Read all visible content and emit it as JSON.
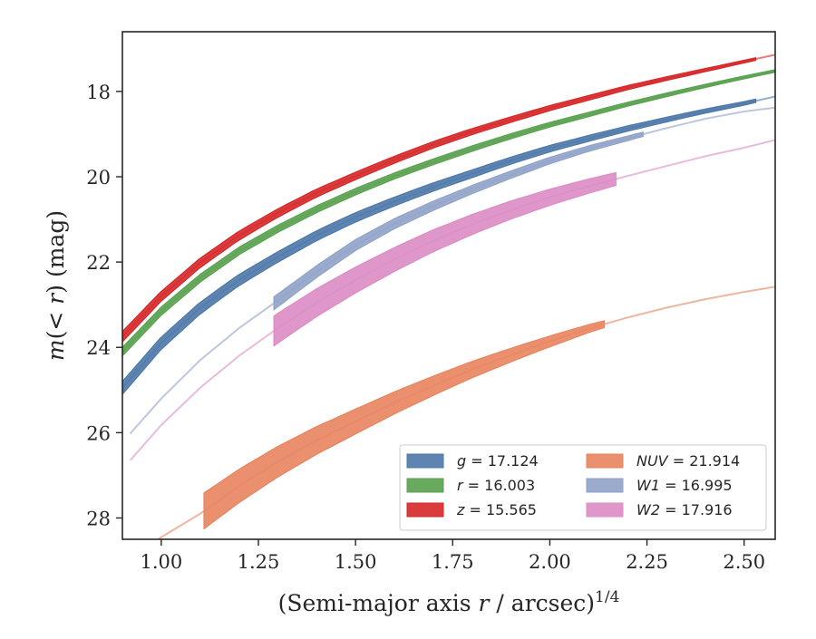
{
  "chart_data": {
    "type": "area",
    "xlabel": "(Semi-major axis r / arcsec)^1/4",
    "ylabel": "m(< r) (mag)",
    "xlim": [
      0.9,
      2.58
    ],
    "ylim": [
      28.5,
      16.6
    ],
    "y_inverted": true,
    "grid": false,
    "legend_position": "lower-right",
    "legend_columns": 2,
    "x_ticks": [
      "1.00",
      "1.25",
      "1.50",
      "1.75",
      "2.00",
      "2.25",
      "2.50"
    ],
    "x_tick_values": [
      1.0,
      1.25,
      1.5,
      1.75,
      2.0,
      2.25,
      2.5
    ],
    "y_ticks": [
      "18",
      "20",
      "22",
      "24",
      "26",
      "28"
    ],
    "y_tick_values": [
      18,
      20,
      22,
      24,
      26,
      28
    ],
    "series": [
      {
        "name": "g = 17.124",
        "legend_var": "g",
        "legend_value": "17.124",
        "color": "#4c78a8",
        "total_mag": 17.124,
        "model_x": [
          0.9,
          1.0,
          1.1,
          1.2,
          1.3,
          1.4,
          1.5,
          1.6,
          1.7,
          1.8,
          1.9,
          2.0,
          2.1,
          2.2,
          2.3,
          2.4,
          2.5,
          2.58
        ],
        "model_y": [
          24.95,
          23.9,
          23.08,
          22.42,
          21.88,
          21.38,
          20.95,
          20.58,
          20.24,
          19.93,
          19.62,
          19.34,
          19.1,
          18.87,
          18.66,
          18.46,
          18.28,
          18.12
        ],
        "data_x_range": [
          0.9,
          2.53
        ],
        "data_halfwidth": [
          0.15,
          0.04
        ]
      },
      {
        "name": "r = 16.003",
        "legend_var": "r",
        "legend_value": "16.003",
        "color": "#59a14f",
        "total_mag": 16.003,
        "model_x": [
          0.9,
          1.0,
          1.1,
          1.2,
          1.3,
          1.4,
          1.5,
          1.6,
          1.7,
          1.8,
          1.9,
          2.0,
          2.1,
          2.2,
          2.3,
          2.4,
          2.5,
          2.58
        ],
        "model_y": [
          24.1,
          23.15,
          22.38,
          21.74,
          21.22,
          20.76,
          20.35,
          19.98,
          19.65,
          19.34,
          19.05,
          18.78,
          18.54,
          18.3,
          18.08,
          17.87,
          17.67,
          17.52
        ],
        "data_x_range": [
          0.9,
          2.58
        ],
        "data_halfwidth": [
          0.1,
          0.03
        ]
      },
      {
        "name": "z = 15.565",
        "legend_var": "z",
        "legend_value": "15.565",
        "color": "#d62728",
        "total_mag": 15.565,
        "model_x": [
          0.9,
          1.0,
          1.1,
          1.2,
          1.3,
          1.4,
          1.5,
          1.6,
          1.7,
          1.8,
          1.9,
          2.0,
          2.1,
          2.2,
          2.3,
          2.4,
          2.5,
          2.58
        ],
        "model_y": [
          23.75,
          22.8,
          22.02,
          21.38,
          20.85,
          20.38,
          19.98,
          19.6,
          19.25,
          18.94,
          18.66,
          18.39,
          18.15,
          17.91,
          17.7,
          17.5,
          17.3,
          17.14
        ],
        "data_x_range": [
          0.9,
          2.53
        ],
        "data_halfwidth": [
          0.12,
          0.03
        ]
      },
      {
        "name": "NUV = 21.914",
        "legend_var": "NUV",
        "legend_value": "21.914",
        "color": "#e8845e",
        "total_mag": 21.914,
        "model_x": [
          0.95,
          1.0,
          1.1,
          1.2,
          1.3,
          1.4,
          1.5,
          1.6,
          1.7,
          1.8,
          1.9,
          2.0,
          2.1,
          2.2,
          2.3,
          2.4,
          2.5,
          2.58
        ],
        "model_y": [
          28.75,
          28.45,
          27.9,
          27.25,
          26.68,
          26.18,
          25.74,
          25.3,
          24.9,
          24.52,
          24.18,
          23.86,
          23.56,
          23.3,
          23.07,
          22.87,
          22.7,
          22.58
        ],
        "data_x_range": [
          1.11,
          2.14
        ],
        "data_halfwidth": [
          0.42,
          0.08
        ]
      },
      {
        "name": "W1 = 16.995",
        "legend_var": "W1",
        "legend_value": "16.995",
        "color": "#8fa2c8",
        "total_mag": 16.995,
        "model_x": [
          0.92,
          1.0,
          1.1,
          1.2,
          1.3,
          1.4,
          1.5,
          1.6,
          1.7,
          1.8,
          1.9,
          2.0,
          2.1,
          2.2,
          2.3,
          2.4,
          2.5,
          2.58
        ],
        "model_y": [
          26.02,
          25.2,
          24.3,
          23.55,
          22.9,
          22.22,
          21.6,
          21.1,
          20.68,
          20.3,
          19.95,
          19.62,
          19.34,
          19.1,
          18.86,
          18.64,
          18.47,
          18.38
        ],
        "data_x_range": [
          1.29,
          2.24
        ],
        "data_halfwidth": [
          0.15,
          0.05
        ]
      },
      {
        "name": "W2 = 17.916",
        "legend_var": "W2",
        "legend_value": "17.916",
        "color": "#dc8cc4",
        "total_mag": 17.916,
        "model_x": [
          0.92,
          1.0,
          1.1,
          1.2,
          1.3,
          1.4,
          1.5,
          1.6,
          1.7,
          1.8,
          1.9,
          2.0,
          2.1,
          2.2,
          2.3,
          2.4,
          2.5,
          2.58
        ],
        "model_y": [
          26.65,
          25.82,
          24.95,
          24.2,
          23.55,
          22.95,
          22.42,
          21.94,
          21.5,
          21.12,
          20.78,
          20.48,
          20.22,
          19.98,
          19.75,
          19.52,
          19.32,
          19.14
        ],
        "data_x_range": [
          1.29,
          2.17
        ],
        "data_halfwidth": [
          0.35,
          0.15
        ]
      }
    ]
  }
}
